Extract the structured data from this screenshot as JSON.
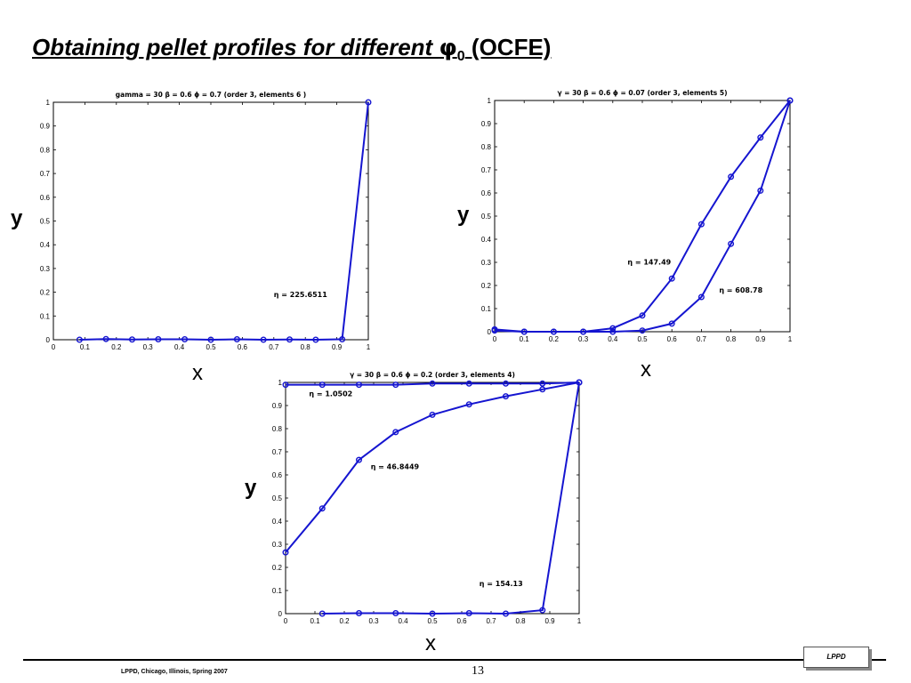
{
  "slide": {
    "title_text": "Obtaining pellet profiles for different ",
    "title_phi": "φ",
    "title_sub": "0",
    "title_suffix": " (OCFE)",
    "footer_text": "LPPD, Chicago, Illinois, Spring 2007",
    "page_number": "13",
    "badge": "LPPD",
    "y_label": "y",
    "x_label": "x"
  },
  "colors": {
    "line": "#1515d0",
    "axis": "#000000"
  },
  "chart_data": [
    {
      "type": "line",
      "title": "gamma = 30  β = 0.6  ϕ = 0.7 (order 3, elements 6 )",
      "xlim": [
        0,
        1
      ],
      "ylim": [
        0,
        1
      ],
      "xticks": [
        0,
        0.1,
        0.2,
        0.3,
        0.4,
        0.5,
        0.6,
        0.7,
        0.8,
        0.9,
        1
      ],
      "yticks": [
        0,
        0.1,
        0.2,
        0.3,
        0.4,
        0.5,
        0.6,
        0.7,
        0.8,
        0.9,
        1
      ],
      "grid": false,
      "series": [
        {
          "x": [
            0.083,
            0.167,
            0.25,
            0.333,
            0.417,
            0.5,
            0.583,
            0.667,
            0.75,
            0.833,
            0.917,
            1.0
          ],
          "y": [
            0,
            0.003,
            0.001,
            0.002,
            0.002,
            0,
            0.002,
            0,
            0.001,
            0,
            0.002,
            1.0
          ]
        }
      ],
      "annotations": [
        {
          "text": "η =  225.6511",
          "x": 0.7,
          "y": 0.18
        }
      ]
    },
    {
      "type": "line",
      "title": "γ = 30  β = 0.6  ϕ = 0.07 (order 3, elements 5)",
      "xlim": [
        0,
        1
      ],
      "ylim": [
        0,
        1
      ],
      "xticks": [
        0,
        0.1,
        0.2,
        0.3,
        0.4,
        0.5,
        0.6,
        0.7,
        0.8,
        0.9,
        1
      ],
      "yticks": [
        0,
        0.1,
        0.2,
        0.3,
        0.4,
        0.5,
        0.6,
        0.7,
        0.8,
        0.9,
        1
      ],
      "grid": false,
      "series": [
        {
          "x": [
            0,
            0.1,
            0.2,
            0.3,
            0.4,
            0.5,
            0.6,
            0.7,
            0.8,
            0.9,
            1.0
          ],
          "y": [
            0.01,
            0.0,
            0.0,
            0.0,
            0.015,
            0.07,
            0.23,
            0.465,
            0.67,
            0.84,
            1.0
          ]
        },
        {
          "x": [
            0,
            0.1,
            0.2,
            0.3,
            0.4,
            0.5,
            0.6,
            0.7,
            0.8,
            0.9,
            1.0
          ],
          "y": [
            0.005,
            0.0,
            0.0,
            0.0,
            0.0,
            0.005,
            0.035,
            0.15,
            0.38,
            0.61,
            1.0
          ]
        }
      ],
      "annotations": [
        {
          "text": "η = 147.49",
          "x": 0.45,
          "y": 0.29
        },
        {
          "text": "η = 608.78",
          "x": 0.76,
          "y": 0.17
        }
      ]
    },
    {
      "type": "line",
      "title": "γ = 30  β = 0.6  ϕ = 0.2 (order 3, elements 4)",
      "xlim": [
        0,
        1
      ],
      "ylim": [
        0,
        1
      ],
      "xticks": [
        0,
        0.1,
        0.2,
        0.3,
        0.4,
        0.5,
        0.6,
        0.7,
        0.8,
        0.9,
        1
      ],
      "yticks": [
        0,
        0.1,
        0.2,
        0.3,
        0.4,
        0.5,
        0.6,
        0.7,
        0.8,
        0.9,
        1
      ],
      "grid": false,
      "series": [
        {
          "x": [
            0,
            0.125,
            0.25,
            0.375,
            0.5,
            0.625,
            0.75,
            0.875,
            1.0
          ],
          "y": [
            0.99,
            0.99,
            0.99,
            0.99,
            0.995,
            0.995,
            0.995,
            0.995,
            1.0
          ]
        },
        {
          "x": [
            0,
            0.125,
            0.25,
            0.375,
            0.5,
            0.625,
            0.75,
            0.875,
            1.0
          ],
          "y": [
            0.265,
            0.455,
            0.665,
            0.785,
            0.86,
            0.905,
            0.94,
            0.97,
            1.0
          ]
        },
        {
          "x": [
            0.125,
            0.25,
            0.375,
            0.5,
            0.625,
            0.75,
            0.875,
            1.0
          ],
          "y": [
            0.0,
            0.002,
            0.002,
            0.0,
            0.002,
            0.0,
            0.015,
            1.0
          ]
        }
      ],
      "annotations": [
        {
          "text": "η = 1.0502",
          "x": 0.08,
          "y": 0.94
        },
        {
          "text": "η = 46.8449",
          "x": 0.29,
          "y": 0.625
        },
        {
          "text": "η = 154.13",
          "x": 0.66,
          "y": 0.12
        }
      ]
    }
  ]
}
